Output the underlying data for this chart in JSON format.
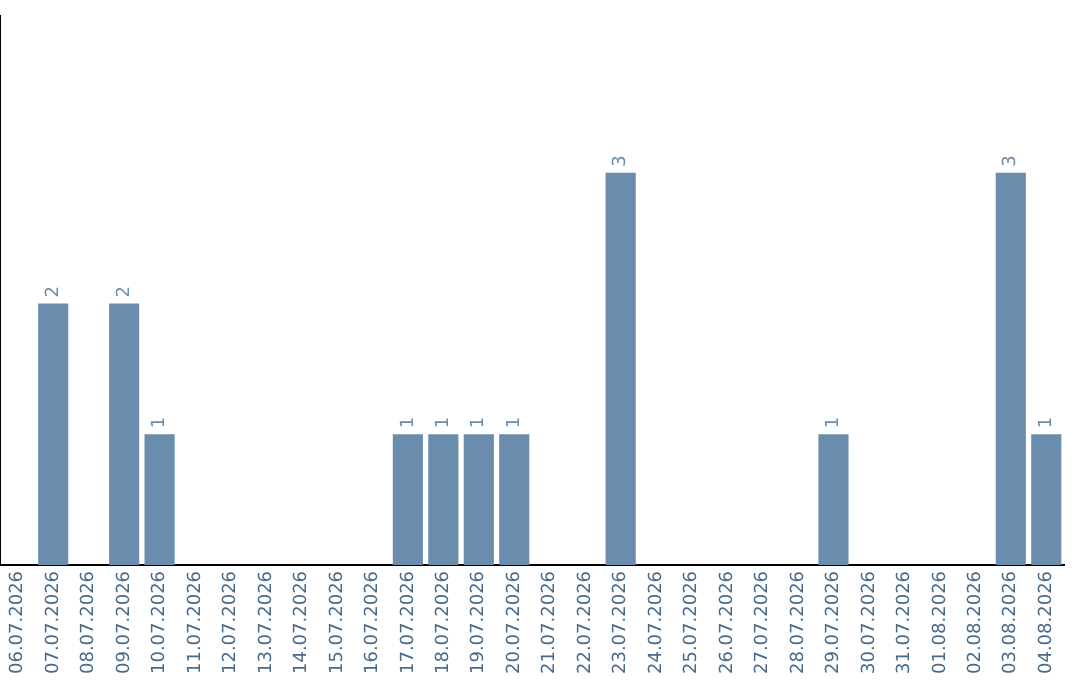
{
  "chart_data": {
    "type": "bar",
    "categories": [
      "06.07.2026",
      "07.07.2026",
      "08.07.2026",
      "09.07.2026",
      "10.07.2026",
      "11.07.2026",
      "12.07.2026",
      "13.07.2026",
      "14.07.2026",
      "15.07.2026",
      "16.07.2026",
      "17.07.2026",
      "18.07.2026",
      "19.07.2026",
      "20.07.2026",
      "21.07.2026",
      "22.07.2026",
      "23.07.2026",
      "24.07.2026",
      "25.07.2026",
      "26.07.2026",
      "27.07.2026",
      "28.07.2026",
      "29.07.2026",
      "30.07.2026",
      "31.07.2026",
      "01.08.2026",
      "02.08.2026",
      "03.08.2026",
      "04.08.2026"
    ],
    "values": [
      0,
      2,
      0,
      2,
      1,
      0,
      0,
      0,
      0,
      0,
      0,
      1,
      1,
      1,
      1,
      0,
      0,
      3,
      0,
      0,
      0,
      0,
      0,
      1,
      0,
      0,
      0,
      0,
      3,
      1
    ],
    "value_labels": [
      null,
      "2",
      null,
      "2",
      "1",
      null,
      null,
      null,
      null,
      null,
      null,
      "1",
      "1",
      "1",
      "1",
      null,
      null,
      "3",
      null,
      null,
      null,
      null,
      null,
      "1",
      null,
      null,
      null,
      null,
      "3",
      "1"
    ],
    "color": "#6a8cad",
    "ylim": [
      0,
      4.2
    ],
    "tick_labels": "x",
    "grid": false,
    "legend": false
  }
}
